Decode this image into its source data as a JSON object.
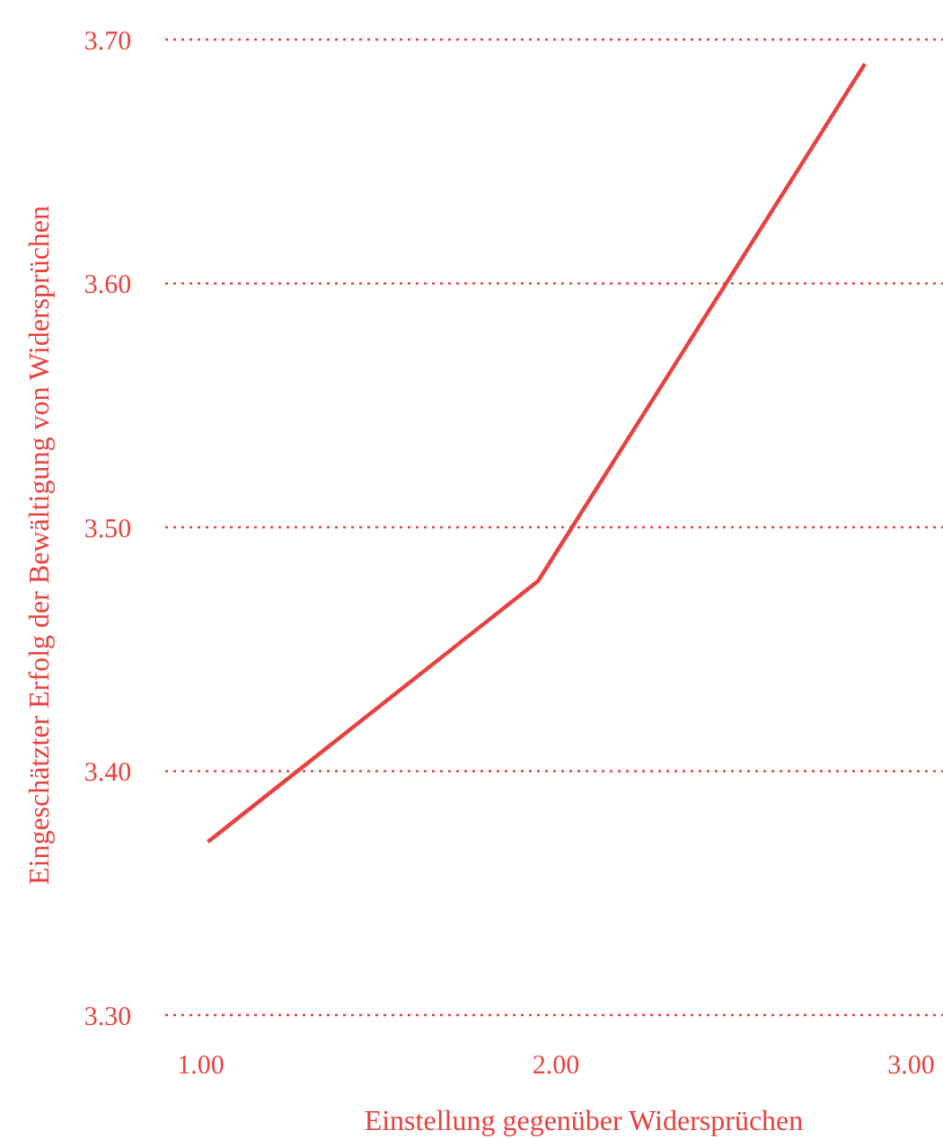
{
  "chart_data": {
    "type": "line",
    "xlabel": "Einstellung gegenüber Widersprüchen",
    "ylabel": "Eingeschätzter Erfolg der Bewältigung von Widersprüchen",
    "x": [
      1.02,
      1.95,
      2.87
    ],
    "series": [
      {
        "color": "#e8413f",
        "values": [
          3.371,
          3.478,
          3.69
        ]
      }
    ],
    "xlim": [
      0.9,
      3.09
    ],
    "ylim": [
      3.3,
      3.7
    ],
    "xticks": [
      {
        "value": 1,
        "label": "1.00"
      },
      {
        "value": 2,
        "label": "2.00"
      },
      {
        "value": 3,
        "label": "3.00"
      }
    ],
    "yticks": [
      {
        "value": 3.3,
        "label": "3.30"
      },
      {
        "value": 3.4,
        "label": "3.40"
      },
      {
        "value": 3.5,
        "label": "3.50"
      },
      {
        "value": 3.6,
        "label": "3.60"
      },
      {
        "value": 3.7,
        "label": "3.70"
      }
    ],
    "grid": "y",
    "marker": "none",
    "line_style": "solid"
  }
}
